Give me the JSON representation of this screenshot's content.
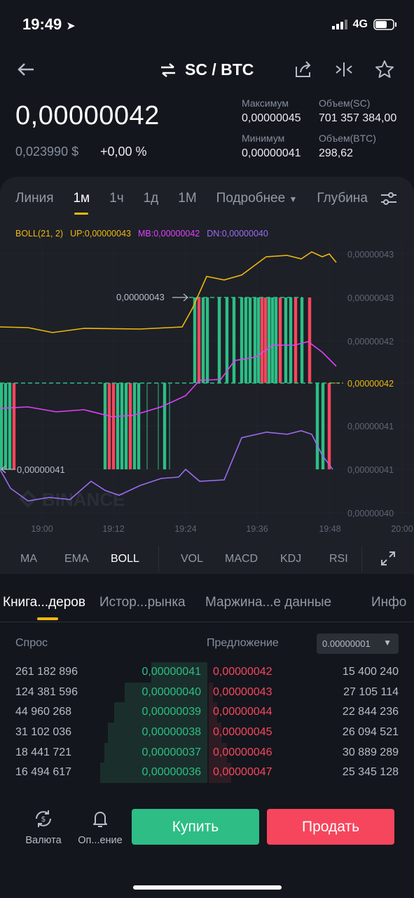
{
  "status": {
    "time": "19:49",
    "network": "4G"
  },
  "header": {
    "pair": "SC / BTC"
  },
  "ticker": {
    "price": "0,00000042",
    "usd": "0,023990 $",
    "change": "+0,00 %",
    "high_label": "Максимум",
    "high": "0,00000045",
    "low_label": "Минимум",
    "low": "0,00000041",
    "vol_base_label": "Объем(SC)",
    "vol_base": "701 357 384,00",
    "vol_quote_label": "Объем(BTC)",
    "vol_quote": "298,62"
  },
  "time_tabs": [
    "Линия",
    "1м",
    "1ч",
    "1д",
    "1М",
    "Подробнее",
    "Глубина"
  ],
  "active_time_tab": "1м",
  "legend": {
    "boll": "BOLL(21, 2)",
    "up": "UP:0,00000043",
    "mb": "MB:0,00000042",
    "dn": "DN:0,00000040"
  },
  "chart": {
    "y_labels": [
      "0,00000043",
      "0,00000043",
      "0,00000042",
      "0,00000042",
      "0,00000041",
      "0,00000041",
      "0,00000040"
    ],
    "x_labels": [
      "19:00",
      "19:12",
      "19:24",
      "19:36",
      "19:48",
      "20:00"
    ],
    "high_marker": "0,00000043",
    "low_marker": "0,00000041",
    "watermark": "BINANCE",
    "colors": {
      "up": "#2ebd85",
      "down": "#f6465d",
      "upper": "#f0b90b",
      "mid": "#e040fb",
      "lower": "#9b6cf0"
    }
  },
  "indicator_tabs": [
    "MA",
    "EMA",
    "BOLL",
    "VOL",
    "MACD",
    "KDJ",
    "RSI"
  ],
  "active_indicator": "BOLL",
  "orderbook": {
    "tabs": [
      "Книга...деров",
      "Истор...рынка",
      "Маржина...е данные",
      "Инфо"
    ],
    "bid_label": "Спрос",
    "ask_label": "Предложение",
    "step": "0.00000001",
    "rows": [
      {
        "bid_qty": "261 182 896",
        "bid_price": "0,00000041",
        "ask_price": "0,00000042",
        "ask_qty": "15 400 240",
        "bid_depth": 0.27,
        "ask_depth": 0.0
      },
      {
        "bid_qty": "124 381 596",
        "bid_price": "0,00000040",
        "ask_price": "0,00000043",
        "ask_qty": "27 105 114",
        "bid_depth": 0.4,
        "ask_depth": 0.02
      },
      {
        "bid_qty": "44 960 268",
        "bid_price": "0,00000039",
        "ask_price": "0,00000044",
        "ask_qty": "22 844 236",
        "bid_depth": 0.45,
        "ask_depth": 0.04
      },
      {
        "bid_qty": "31 102 036",
        "bid_price": "0,00000038",
        "ask_price": "0,00000045",
        "ask_qty": "26 094 521",
        "bid_depth": 0.48,
        "ask_depth": 0.06
      },
      {
        "bid_qty": "18 441 721",
        "bid_price": "0,00000037",
        "ask_price": "0,00000046",
        "ask_qty": "30 889 289",
        "bid_depth": 0.5,
        "ask_depth": 0.09
      },
      {
        "bid_qty": "16 494 617",
        "bid_price": "0,00000036",
        "ask_price": "0,00000047",
        "ask_qty": "25 345 128",
        "bid_depth": 0.52,
        "ask_depth": 0.11
      }
    ]
  },
  "bottom": {
    "currency": "Валюта",
    "alerts": "Оп...ение",
    "buy": "Купить",
    "sell": "Продать"
  }
}
